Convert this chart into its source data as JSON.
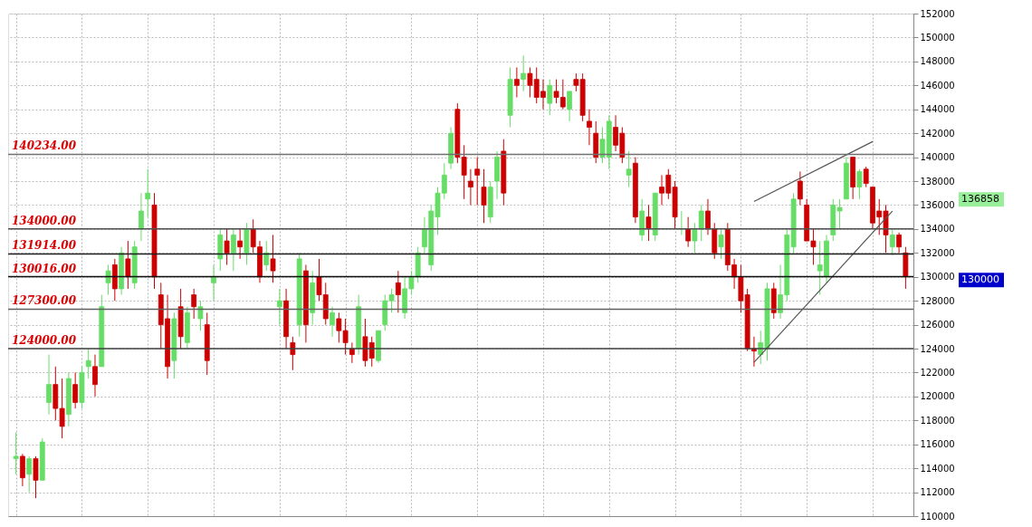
{
  "chart_data": {
    "type": "candlestick",
    "categories": [
      null,
      null,
      null,
      null,
      null,
      null,
      null,
      null,
      null,
      null,
      null,
      null,
      null,
      null,
      null,
      null,
      null,
      null,
      null,
      null,
      null,
      null,
      null,
      null,
      null,
      null,
      null,
      null,
      null,
      null,
      null,
      null,
      null,
      null,
      null,
      null,
      null,
      null,
      null,
      null,
      null,
      null,
      null,
      null,
      null,
      null,
      null,
      null,
      null,
      null,
      null,
      null,
      null,
      null,
      null,
      null,
      null,
      null,
      null,
      null,
      null,
      null,
      null,
      null,
      null,
      null,
      null,
      null,
      null,
      null,
      null,
      null,
      null,
      null,
      null,
      null,
      null,
      null,
      null,
      null,
      null,
      null,
      null,
      null,
      null,
      null,
      null,
      null,
      null,
      null,
      null,
      null,
      null,
      null,
      null,
      null,
      null,
      null,
      null,
      null,
      null,
      null,
      null,
      null,
      null,
      null,
      null,
      null,
      null,
      null,
      null,
      null,
      null,
      null,
      null,
      null,
      null,
      null,
      null,
      null,
      null,
      null,
      null,
      null,
      null,
      null,
      null,
      null,
      null,
      null,
      null,
      null,
      null,
      null,
      null,
      null
    ],
    "ohlc": [
      [
        114800,
        117000,
        113500,
        115000
      ],
      [
        115000,
        115200,
        112500,
        113200
      ],
      [
        113500,
        115000,
        112000,
        114800
      ],
      [
        114800,
        115000,
        111500,
        113000
      ],
      [
        113000,
        116500,
        113000,
        116200
      ],
      [
        119500,
        123500,
        118500,
        121000
      ],
      [
        121000,
        122500,
        118000,
        119000
      ],
      [
        119000,
        121500,
        116500,
        117500
      ],
      [
        118500,
        122000,
        117500,
        121500
      ],
      [
        121000,
        122000,
        119000,
        119500
      ],
      [
        119500,
        122500,
        119000,
        122000
      ],
      [
        122500,
        124000,
        121500,
        123000
      ],
      [
        122500,
        123500,
        120000,
        121000
      ],
      [
        122500,
        128500,
        122500,
        127500
      ],
      [
        129500,
        131000,
        128500,
        130500
      ],
      [
        131000,
        131500,
        128000,
        129000
      ],
      [
        129000,
        132500,
        128500,
        132000
      ],
      [
        131500,
        133000,
        129000,
        130000
      ],
      [
        129500,
        133000,
        129000,
        132500
      ],
      [
        134000,
        137000,
        133000,
        135500
      ],
      [
        136500,
        139000,
        135000,
        137000
      ],
      [
        136000,
        137000,
        129000,
        130000
      ],
      [
        128500,
        129500,
        124000,
        126000
      ],
      [
        126500,
        128500,
        121500,
        122500
      ],
      [
        123000,
        127000,
        121500,
        126500
      ],
      [
        127500,
        129000,
        124000,
        125000
      ],
      [
        124500,
        127500,
        124000,
        127000
      ],
      [
        128500,
        129000,
        126500,
        127500
      ],
      [
        126500,
        128000,
        125500,
        127500
      ],
      [
        126000,
        127000,
        121800,
        123000
      ],
      [
        129500,
        131000,
        128000,
        130000
      ],
      [
        131500,
        134000,
        130500,
        133500
      ],
      [
        133000,
        134000,
        131000,
        132000
      ],
      [
        132000,
        134000,
        130500,
        133500
      ],
      [
        133000,
        134000,
        131500,
        132500
      ],
      [
        132000,
        134500,
        131000,
        134000
      ],
      [
        134000,
        134800,
        132000,
        132500
      ],
      [
        132500,
        133000,
        129500,
        130000
      ],
      [
        131000,
        133000,
        130500,
        132000
      ],
      [
        131500,
        133500,
        129500,
        130500
      ],
      [
        127500,
        129000,
        126000,
        128000
      ],
      [
        128000,
        129000,
        124000,
        125000
      ],
      [
        124500,
        125000,
        122200,
        123500
      ],
      [
        126000,
        132000,
        125000,
        131500
      ],
      [
        130500,
        131000,
        124500,
        126000
      ],
      [
        127000,
        130500,
        126000,
        129500
      ],
      [
        130000,
        131500,
        128000,
        128500
      ],
      [
        128500,
        129500,
        126000,
        126500
      ],
      [
        126000,
        127500,
        125000,
        127000
      ],
      [
        126500,
        127000,
        124500,
        125500
      ],
      [
        125500,
        126500,
        123500,
        124500
      ],
      [
        124000,
        124500,
        122800,
        123500
      ],
      [
        124000,
        128500,
        123500,
        127500
      ],
      [
        125000,
        126500,
        122500,
        123000
      ],
      [
        124500,
        125000,
        122500,
        123200
      ],
      [
        123000,
        125500,
        122800,
        125500
      ],
      [
        126000,
        128500,
        125500,
        128000
      ],
      [
        128000,
        129000,
        127000,
        128500
      ],
      [
        129500,
        130500,
        127000,
        128500
      ],
      [
        127000,
        130000,
        126500,
        129000
      ],
      [
        129000,
        130500,
        128500,
        130000
      ],
      [
        130000,
        132500,
        129500,
        132000
      ],
      [
        132500,
        135000,
        132000,
        134000
      ],
      [
        131000,
        136000,
        130500,
        135500
      ],
      [
        135000,
        137500,
        133500,
        137000
      ],
      [
        137000,
        139500,
        136500,
        138500
      ],
      [
        139500,
        142500,
        139000,
        142000
      ],
      [
        144000,
        144500,
        139500,
        140000
      ],
      [
        140000,
        141000,
        136500,
        138500
      ],
      [
        138000,
        139000,
        136000,
        137500
      ],
      [
        139000,
        140000,
        136000,
        138500
      ],
      [
        137500,
        139000,
        134500,
        136000
      ],
      [
        135000,
        138000,
        134500,
        137500
      ],
      [
        138000,
        140500,
        136500,
        140000
      ],
      [
        140500,
        141500,
        136000,
        137000
      ],
      [
        143500,
        147500,
        142500,
        146500
      ],
      [
        146500,
        147500,
        145000,
        146000
      ],
      [
        146500,
        148500,
        145500,
        147000
      ],
      [
        147000,
        147500,
        145000,
        146000
      ],
      [
        146500,
        147500,
        144500,
        145000
      ],
      [
        145500,
        146500,
        144000,
        145000
      ],
      [
        144500,
        146500,
        143500,
        146000
      ],
      [
        145500,
        146500,
        144500,
        145000
      ],
      [
        145000,
        146500,
        144000,
        144200
      ],
      [
        144000,
        145500,
        143000,
        145500
      ],
      [
        146500,
        147000,
        145500,
        146000
      ],
      [
        146500,
        147000,
        143000,
        143500
      ],
      [
        143000,
        144000,
        141000,
        142500
      ],
      [
        142000,
        143000,
        139500,
        140000
      ],
      [
        140000,
        142500,
        139500,
        141500
      ],
      [
        140000,
        143500,
        139000,
        143000
      ],
      [
        142500,
        143500,
        140500,
        141000
      ],
      [
        142000,
        142500,
        139500,
        140000
      ],
      [
        138500,
        140500,
        137500,
        139000
      ],
      [
        139500,
        140000,
        134500,
        135000
      ],
      [
        133500,
        136500,
        133000,
        135500
      ],
      [
        135000,
        136000,
        133000,
        134000
      ],
      [
        133500,
        137000,
        133000,
        137000
      ],
      [
        137500,
        138500,
        136000,
        137000
      ],
      [
        138500,
        139000,
        136500,
        137000
      ],
      [
        137500,
        138000,
        134000,
        135000
      ],
      [
        134000,
        135500,
        133500,
        134000
      ],
      [
        134000,
        135000,
        132500,
        133000
      ],
      [
        133000,
        134500,
        132000,
        134000
      ],
      [
        134000,
        136000,
        133000,
        135500
      ],
      [
        135500,
        136500,
        133500,
        134000
      ],
      [
        134000,
        134500,
        131500,
        132000
      ],
      [
        132500,
        134000,
        131500,
        133500
      ],
      [
        134000,
        134500,
        130500,
        131000
      ],
      [
        131000,
        131500,
        129000,
        130000
      ],
      [
        130000,
        131000,
        127000,
        128000
      ],
      [
        128500,
        129000,
        123800,
        124000
      ],
      [
        124000,
        125000,
        122500,
        123800
      ],
      [
        123500,
        125500,
        122700,
        124500
      ],
      [
        124000,
        129500,
        123000,
        129000
      ],
      [
        129000,
        129500,
        126500,
        127000
      ],
      [
        127000,
        131000,
        126500,
        128500
      ],
      [
        128500,
        134000,
        128000,
        133500
      ],
      [
        132500,
        137000,
        132000,
        136500
      ],
      [
        138000,
        138800,
        136000,
        136500
      ],
      [
        136000,
        136500,
        133000,
        133000
      ],
      [
        133000,
        134000,
        131000,
        132500
      ],
      [
        130500,
        133000,
        128500,
        131000
      ],
      [
        130000,
        133500,
        129500,
        133000
      ],
      [
        133500,
        136500,
        133000,
        136000
      ],
      [
        135500,
        136500,
        134000,
        135800
      ],
      [
        136500,
        140000,
        136500,
        139500
      ],
      [
        140000,
        140000,
        136500,
        137500
      ],
      [
        137500,
        139000,
        136500,
        138800
      ],
      [
        139000,
        139200,
        137500,
        137800
      ],
      [
        137500,
        137500,
        134000,
        134500
      ],
      [
        135500,
        136500,
        133500,
        135000
      ],
      [
        135500,
        136000,
        132000,
        133500
      ],
      [
        132500,
        134000,
        131800,
        133500
      ],
      [
        133500,
        133700,
        132000,
        132500
      ],
      [
        132000,
        132500,
        129000,
        130000
      ]
    ],
    "colors": [
      "#66dd66",
      "#cc0000",
      "#66dd66",
      "#cc0000",
      "#66dd66",
      "#66dd66",
      "#cc0000",
      "#cc0000",
      "#66dd66",
      "#cc0000",
      "#66dd66",
      "#66dd66",
      "#cc0000",
      "#66dd66",
      "#66dd66",
      "#cc0000",
      "#66dd66",
      "#cc0000",
      "#66dd66",
      "#66dd66",
      "#66dd66",
      "#cc0000",
      "#cc0000",
      "#cc0000",
      "#66dd66",
      "#cc0000",
      "#66dd66",
      "#cc0000",
      "#66dd66",
      "#cc0000",
      "#66dd66",
      "#66dd66",
      "#cc0000",
      "#66dd66",
      "#cc0000",
      "#66dd66",
      "#cc0000",
      "#cc0000",
      "#66dd66",
      "#cc0000",
      "#66dd66",
      "#cc0000",
      "#cc0000",
      "#66dd66",
      "#cc0000",
      "#66dd66",
      "#cc0000",
      "#cc0000",
      "#66dd66",
      "#cc0000",
      "#cc0000",
      "#cc0000",
      "#66dd66",
      "#cc0000",
      "#cc0000",
      "#66dd66",
      "#66dd66",
      "#66dd66",
      "#cc0000",
      "#66dd66",
      "#66dd66",
      "#66dd66",
      "#66dd66",
      "#66dd66",
      "#66dd66",
      "#66dd66",
      "#66dd66",
      "#cc0000",
      "#cc0000",
      "#cc0000",
      "#cc0000",
      "#cc0000",
      "#66dd66",
      "#66dd66",
      "#cc0000",
      "#66dd66",
      "#cc0000",
      "#66dd66",
      "#cc0000",
      "#cc0000",
      "#cc0000",
      "#66dd66",
      "#cc0000",
      "#cc0000",
      "#66dd66",
      "#cc0000",
      "#cc0000",
      "#cc0000",
      "#cc0000",
      "#66dd66",
      "#66dd66",
      "#cc0000",
      "#cc0000",
      "#66dd66",
      "#cc0000",
      "#66dd66",
      "#cc0000",
      "#66dd66",
      "#cc0000",
      "#cc0000",
      "#cc0000",
      "#66dd66",
      "#cc0000",
      "#66dd66",
      "#66dd66",
      "#cc0000",
      "#cc0000",
      "#66dd66",
      "#cc0000",
      "#cc0000",
      "#cc0000",
      "#cc0000",
      "#cc0000",
      "#66dd66",
      "#66dd66",
      "#cc0000",
      "#66dd66",
      "#66dd66",
      "#66dd66",
      "#cc0000",
      "#cc0000",
      "#cc0000",
      "#66dd66",
      "#66dd66",
      "#66dd66",
      "#66dd66",
      "#66dd66",
      "#cc0000",
      "#66dd66",
      "#cc0000",
      "#cc0000",
      "#cc0000",
      "#cc0000",
      "#66dd66",
      "#cc0000",
      "#cc0000"
    ],
    "series": [
      {
        "type": "line",
        "color": "#555555",
        "values": [
          null,
          null,
          null,
          null,
          null,
          null,
          null,
          null,
          null,
          null,
          null,
          null,
          null,
          null,
          null,
          null,
          null,
          null,
          null,
          null,
          null,
          null,
          null,
          null,
          null,
          null,
          null,
          null,
          null,
          null,
          null,
          null,
          null,
          null,
          null,
          null,
          null,
          null,
          null,
          null,
          null,
          null,
          null,
          null,
          null,
          null,
          null,
          null,
          null,
          null,
          null,
          null,
          null,
          null,
          null,
          null,
          null,
          null,
          null,
          null,
          null,
          null,
          null,
          null,
          null,
          null,
          null,
          null,
          null,
          null,
          null,
          null,
          null,
          null,
          null,
          null,
          null,
          null,
          null,
          null,
          null,
          null,
          null,
          null,
          null,
          null,
          null,
          null,
          null,
          null,
          null,
          null,
          null,
          null,
          null,
          null,
          null,
          null,
          null,
          null,
          null,
          null,
          null,
          null,
          null,
          null,
          null,
          null,
          null,
          null,
          null,
          null,
          136300,
          null,
          null,
          null,
          null,
          null,
          null,
          null,
          null,
          null,
          null,
          null,
          null,
          null,
          null,
          null,
          null,
          null,
          141300,
          null,
          null,
          null,
          null,
          null
        ]
      },
      {
        "type": "line",
        "color": "#555555",
        "values": [
          null,
          null,
          null,
          null,
          null,
          null,
          null,
          null,
          null,
          null,
          null,
          null,
          null,
          null,
          null,
          null,
          null,
          null,
          null,
          null,
          null,
          null,
          null,
          null,
          null,
          null,
          null,
          null,
          null,
          null,
          null,
          null,
          null,
          null,
          null,
          null,
          null,
          null,
          null,
          null,
          null,
          null,
          null,
          null,
          null,
          null,
          null,
          null,
          null,
          null,
          null,
          null,
          null,
          null,
          null,
          null,
          null,
          null,
          null,
          null,
          null,
          null,
          null,
          null,
          null,
          null,
          null,
          null,
          null,
          null,
          null,
          null,
          null,
          null,
          null,
          null,
          null,
          null,
          null,
          null,
          null,
          null,
          null,
          null,
          null,
          null,
          null,
          null,
          null,
          null,
          null,
          null,
          null,
          null,
          null,
          null,
          null,
          null,
          null,
          null,
          null,
          null,
          null,
          null,
          null,
          null,
          null,
          null,
          null,
          null,
          null,
          null,
          122850,
          null,
          null,
          null,
          null,
          null,
          null,
          null,
          null,
          null,
          null,
          null,
          null,
          null,
          null,
          null,
          null,
          null,
          null,
          null,
          null,
          135500,
          null,
          null
        ]
      }
    ],
    "ylim": [
      110000,
      152000
    ],
    "yticks": [
      110000,
      112000,
      114000,
      116000,
      118000,
      120000,
      122000,
      124000,
      126000,
      128000,
      130000,
      132000,
      134000,
      136000,
      138000,
      140000,
      142000,
      144000,
      146000,
      148000,
      150000,
      152000
    ],
    "ref_lines": [
      {
        "axis": "y",
        "value": 140234,
        "label": "140234.00",
        "color": "#707070"
      },
      {
        "axis": "y",
        "value": 134000,
        "label": "134000.00",
        "color": "#505050"
      },
      {
        "axis": "y",
        "value": 131914,
        "label": "131914.00",
        "color": "#202020"
      },
      {
        "axis": "y",
        "value": 130016,
        "label": "130016.00",
        "color": "#101010"
      },
      {
        "axis": "y",
        "value": 127300,
        "label": "127300.00",
        "color": "#606060"
      },
      {
        "axis": "y",
        "value": 124000,
        "label": "124000.00",
        "color": "#404040"
      }
    ],
    "annotations": [
      "136858",
      "130000"
    ],
    "grid": true,
    "tick_labels": "y"
  }
}
